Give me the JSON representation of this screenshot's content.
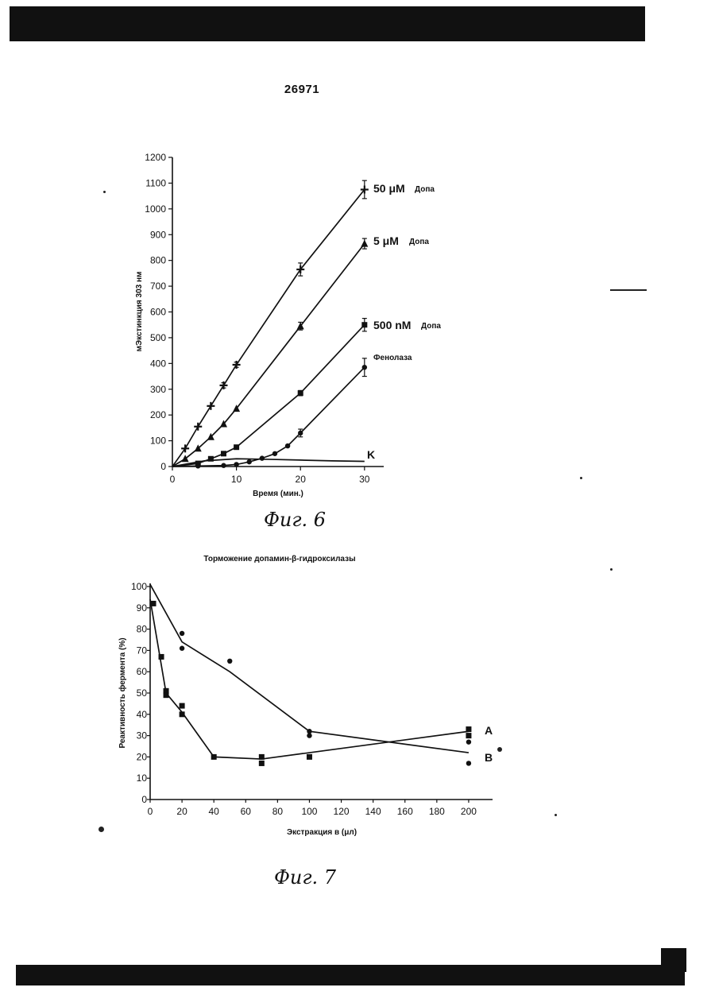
{
  "page_number": "26971",
  "figures": [
    {
      "caption": "Фиг. 6"
    },
    {
      "caption": "Фиг. 7"
    }
  ],
  "chart_data": [
    {
      "type": "line",
      "title": "",
      "xlabel": "Время (мин.)",
      "ylabel": "мЭкстинкция 303 нм",
      "xlim": [
        0,
        33
      ],
      "ylim": [
        0,
        1200
      ],
      "xticks": [
        0,
        10,
        20,
        30
      ],
      "yticks": [
        0,
        100,
        200,
        300,
        400,
        500,
        600,
        700,
        800,
        900,
        1000,
        1100,
        1200
      ],
      "grid": false,
      "series": [
        {
          "name_prefix": "50",
          "name_unit": "μM",
          "name_suffix": "Допа",
          "marker": "cross",
          "x": [
            0,
            2,
            4,
            6,
            8,
            10,
            20,
            30
          ],
          "y": [
            0,
            70,
            155,
            235,
            315,
            395,
            765,
            1075
          ],
          "error": [
            0,
            0,
            0,
            0,
            10,
            10,
            25,
            35
          ]
        },
        {
          "name_prefix": "5",
          "name_unit": "μM",
          "name_suffix": "Допа",
          "marker": "triangle",
          "x": [
            0,
            2,
            4,
            6,
            8,
            10,
            20,
            30
          ],
          "y": [
            0,
            30,
            70,
            115,
            165,
            225,
            545,
            865
          ],
          "error": [
            0,
            0,
            0,
            0,
            0,
            0,
            15,
            20
          ]
        },
        {
          "name_prefix": "500",
          "name_unit": "nM",
          "name_suffix": "Допа",
          "marker": "square",
          "x": [
            0,
            4,
            6,
            8,
            10,
            20,
            30
          ],
          "y": [
            0,
            12,
            30,
            50,
            75,
            285,
            550
          ],
          "error": [
            0,
            0,
            0,
            0,
            0,
            10,
            25
          ]
        },
        {
          "name_prefix": "",
          "name_unit": "",
          "name_suffix": "Фенолаза",
          "marker": "circle",
          "x": [
            0,
            4,
            8,
            10,
            12,
            14,
            16,
            18,
            20,
            30
          ],
          "y": [
            0,
            2,
            4,
            8,
            18,
            32,
            50,
            80,
            130,
            385
          ],
          "error": [
            0,
            0,
            0,
            0,
            0,
            0,
            0,
            0,
            15,
            35
          ]
        },
        {
          "name_prefix": "",
          "name_unit": "",
          "name_suffix": "K",
          "marker": "none",
          "x": [
            0,
            5,
            10,
            15,
            20,
            25,
            30
          ],
          "y": [
            0,
            22,
            30,
            28,
            25,
            22,
            20
          ],
          "error": [
            0,
            0,
            0,
            0,
            0,
            0,
            0
          ]
        }
      ]
    },
    {
      "type": "line",
      "title": "Торможение допамин-β-гидроксилазы",
      "xlabel": "Экстракция в (μл)",
      "ylabel": "Реактивность фермента (%)",
      "xlim": [
        0,
        215
      ],
      "ylim": [
        0,
        100
      ],
      "xticks": [
        0,
        20,
        40,
        60,
        80,
        100,
        120,
        140,
        160,
        180,
        200
      ],
      "yticks": [
        0,
        10,
        20,
        30,
        40,
        50,
        60,
        70,
        80,
        90,
        100
      ],
      "grid": false,
      "series": [
        {
          "name": "A",
          "marker": "circle",
          "line": {
            "x": [
              0,
              20,
              50,
              100,
              200
            ],
            "y": [
              101,
              74,
              60,
              32,
              22
            ]
          },
          "points": {
            "x": [
              20,
              20,
              50,
              100,
              100,
              200,
              200
            ],
            "y": [
              78,
              71,
              65,
              32,
              30,
              27,
              17
            ]
          }
        },
        {
          "name": "B",
          "marker": "square",
          "line": {
            "x": [
              0,
              10,
              20,
              40,
              70,
              100,
              200
            ],
            "y": [
              94,
              50,
              41,
              20,
              19,
              22,
              32
            ]
          },
          "points": {
            "x": [
              2,
              7,
              10,
              10,
              20,
              20,
              40,
              70,
              70,
              100,
              200,
              200
            ],
            "y": [
              92,
              67,
              51,
              49,
              44,
              40,
              20,
              20,
              17,
              20,
              33,
              30
            ]
          }
        }
      ]
    }
  ]
}
